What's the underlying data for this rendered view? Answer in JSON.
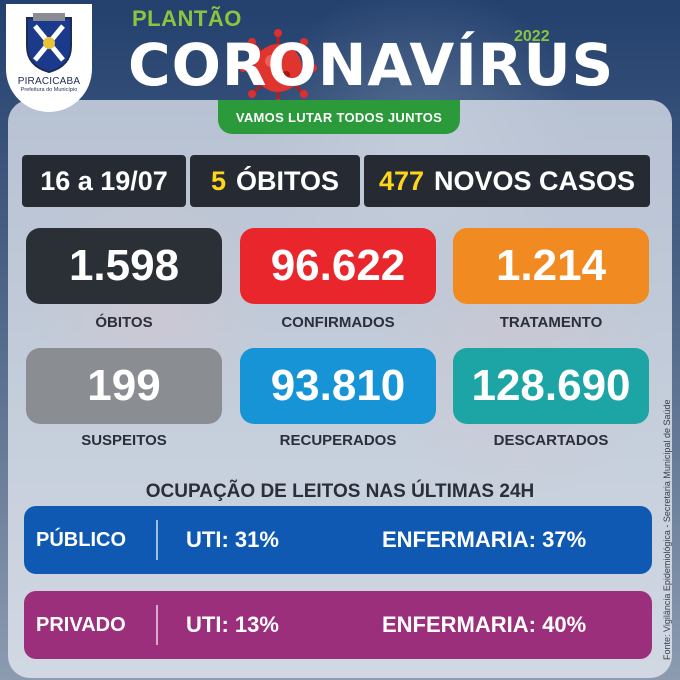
{
  "header": {
    "plantao": "PLANTÃO",
    "title": "CORONAVÍRUS",
    "year": "2022",
    "slogan": "VAMOS LUTAR TODOS JUNTOS",
    "logo": {
      "city": "PIRACICABA",
      "sub": "Prefeitura do Município"
    }
  },
  "week": {
    "period": "16 a 19/07",
    "deaths_number": "5",
    "deaths_label": "ÓBITOS",
    "cases_number": "477",
    "cases_label": "NOVOS CASOS"
  },
  "stats": [
    {
      "value": "1.598",
      "label": "ÓBITOS",
      "color": "#2b3036"
    },
    {
      "value": "96.622",
      "label": "CONFIRMADOS",
      "color": "#e8262b"
    },
    {
      "value": "1.214",
      "label": "TRATAMENTO",
      "color": "#f28a22"
    },
    {
      "value": "199",
      "label": "SUSPEITOS",
      "color": "#8a8d92"
    },
    {
      "value": "93.810",
      "label": "RECUPERADOS",
      "color": "#1794d5"
    },
    {
      "value": "128.690",
      "label": "DESCARTADOS",
      "color": "#1da4a4"
    }
  ],
  "beds": {
    "title": "OCUPAÇÃO DE LEITOS NAS ÚLTIMAS 24H",
    "rows": [
      {
        "type": "PÚBLICO",
        "uti": "UTI: 31%",
        "enfermaria": "ENFERMARIA: 37%",
        "color": "#1059b3"
      },
      {
        "type": "PRIVADO",
        "uti": "UTI: 13%",
        "enfermaria": "ENFERMARIA: 40%",
        "color": "#9b2f7c"
      }
    ]
  },
  "source": "Fonte: Vigilância Epidemiológica - Secretaria Municipal de Saúde"
}
